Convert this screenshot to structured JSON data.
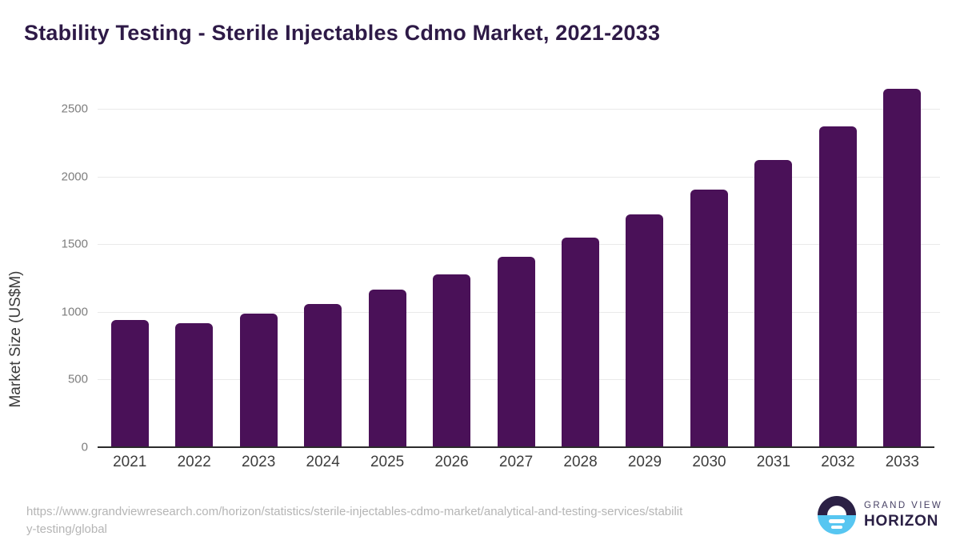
{
  "title": "Stability Testing - Sterile Injectables Cdmo Market, 2021-2033",
  "chart_data": {
    "type": "bar",
    "categories": [
      "2021",
      "2022",
      "2023",
      "2024",
      "2025",
      "2026",
      "2027",
      "2028",
      "2029",
      "2030",
      "2031",
      "2032",
      "2033"
    ],
    "values": [
      940,
      915,
      985,
      1060,
      1165,
      1275,
      1405,
      1550,
      1720,
      1905,
      2120,
      2370,
      2645
    ],
    "title": "Stability Testing - Sterile Injectables Cdmo Market, 2021-2033",
    "xlabel": "",
    "ylabel": "Market Size (US$M)",
    "ylim": [
      0,
      2500
    ],
    "yticks": [
      0,
      500,
      1000,
      1500,
      2000,
      2500
    ],
    "grid": true,
    "legend": "none",
    "bar_color": "#4a1158"
  },
  "footer": {
    "url_lines": [
      "https://www.grandviewresearch.com/horizon/statistics/sterile-injectables-cdmo-market/analytical-and-testing-services/stabilit",
      "y-testing/global"
    ],
    "logo": {
      "top_text": "GRAND VIEW",
      "bottom_text": "HORIZON"
    }
  },
  "colors": {
    "bar": "#4a1158",
    "title_text": "#2e1a47",
    "x_label": "#3d3d3d",
    "y_tick": "#7e7e7e",
    "gridline": "#e9e9e9",
    "axis_line": "#2b2b2b",
    "footer_text": "#b5b5b5",
    "logo_navy": "#2b2045",
    "logo_blue": "#57c6f1"
  }
}
